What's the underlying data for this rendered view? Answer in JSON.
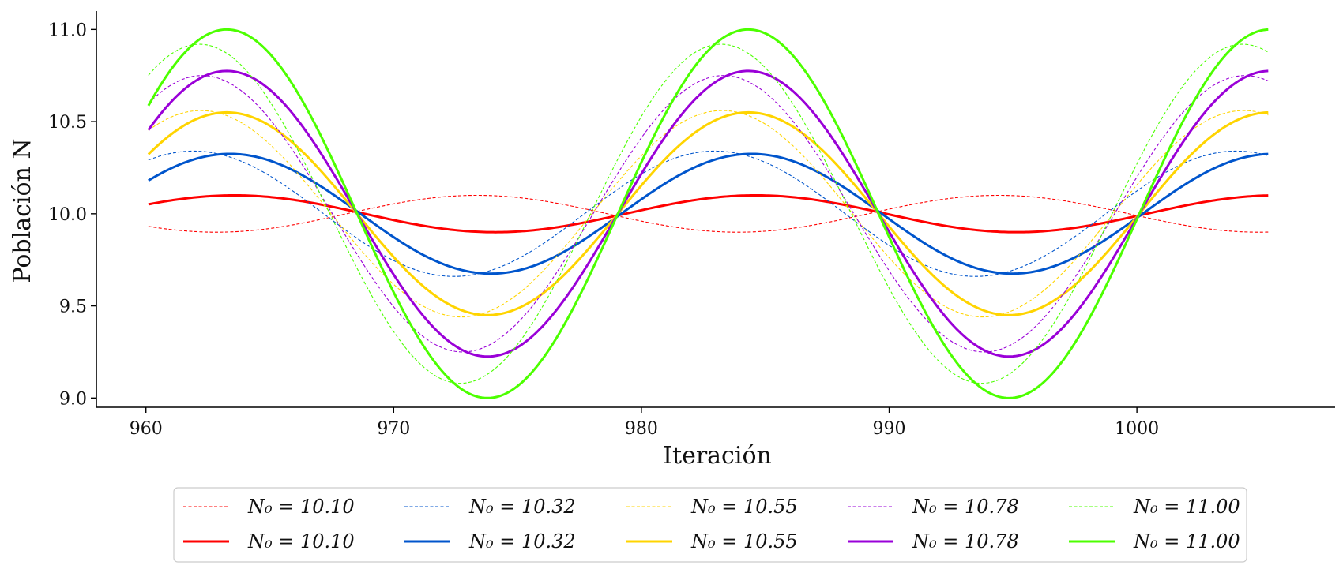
{
  "chart_data": {
    "type": "line",
    "title": "",
    "xlabel": "Iteración",
    "ylabel": "Población N",
    "xlim": [
      958,
      1008
    ],
    "ylim": [
      8.95,
      11.1
    ],
    "x_ticks": [
      "960",
      "970",
      "980",
      "990",
      "1000"
    ],
    "y_ticks": [
      "9.0",
      "9.5",
      "10.0",
      "10.5",
      "11.0"
    ],
    "grid": false,
    "legend_position": "bottom",
    "series": [
      {
        "name": "N0 = 10.10",
        "label": "N₀ = 10.10",
        "color": "#ff0000",
        "style": "dashed",
        "amplitude": 0.1,
        "period": 21.05,
        "zero_crossing": 968.1,
        "x_range": [
          960.1,
          1005.3
        ]
      },
      {
        "name": "N0 = 10.10",
        "label": "N₀ = 10.10",
        "color": "#ff0000",
        "style": "solid",
        "amplitude": 0.1,
        "period": 21.05,
        "zero_crossing": 958.3,
        "x_range": [
          960.1,
          1005.3
        ]
      },
      {
        "name": "N0 = 10.32",
        "label": "N₀ = 10.32",
        "color": "#0055cc",
        "style": "dashed",
        "amplitude": 0.34,
        "period": 21.05,
        "zero_crossing": 956.65,
        "x_range": [
          960.1,
          1005.3
        ]
      },
      {
        "name": "N0 = 10.32",
        "label": "N₀ = 10.32",
        "color": "#0055cc",
        "style": "solid",
        "amplitude": 0.325,
        "period": 21.05,
        "zero_crossing": 958.13,
        "x_range": [
          960.1,
          1005.3
        ]
      },
      {
        "name": "N0 = 10.55",
        "label": "N₀ = 10.55",
        "color": "#ffd400",
        "style": "dashed",
        "amplitude": 0.56,
        "period": 21.05,
        "zero_crossing": 956.95,
        "x_range": [
          960.1,
          1005.3
        ]
      },
      {
        "name": "N0 = 10.55",
        "label": "N₀ = 10.55",
        "color": "#ffd400",
        "style": "solid",
        "amplitude": 0.55,
        "period": 21.05,
        "zero_crossing": 958.0,
        "x_range": [
          960.1,
          1005.3
        ]
      },
      {
        "name": "N0 = 10.78",
        "label": "N₀ = 10.78",
        "color": "#9a00d8",
        "style": "dashed",
        "amplitude": 0.75,
        "period": 21.05,
        "zero_crossing": 957.0,
        "x_range": [
          960.1,
          1005.3
        ]
      },
      {
        "name": "N0 = 10.78",
        "label": "N₀ = 10.78",
        "color": "#9a00d8",
        "style": "solid",
        "amplitude": 0.775,
        "period": 21.05,
        "zero_crossing": 958.0,
        "x_range": [
          960.1,
          1005.3
        ]
      },
      {
        "name": "N0 = 11.00",
        "label": "N₀ = 11.00",
        "color": "#4cff00",
        "style": "dashed",
        "amplitude": 0.92,
        "period": 21.05,
        "zero_crossing": 956.9,
        "x_range": [
          960.1,
          1005.3
        ]
      },
      {
        "name": "N0 = 11.00",
        "label": "N₀ = 11.00",
        "color": "#4cff00",
        "style": "solid",
        "amplitude": 1.0,
        "period": 21.05,
        "zero_crossing": 958.0,
        "x_range": [
          960.1,
          1005.3
        ]
      }
    ]
  }
}
